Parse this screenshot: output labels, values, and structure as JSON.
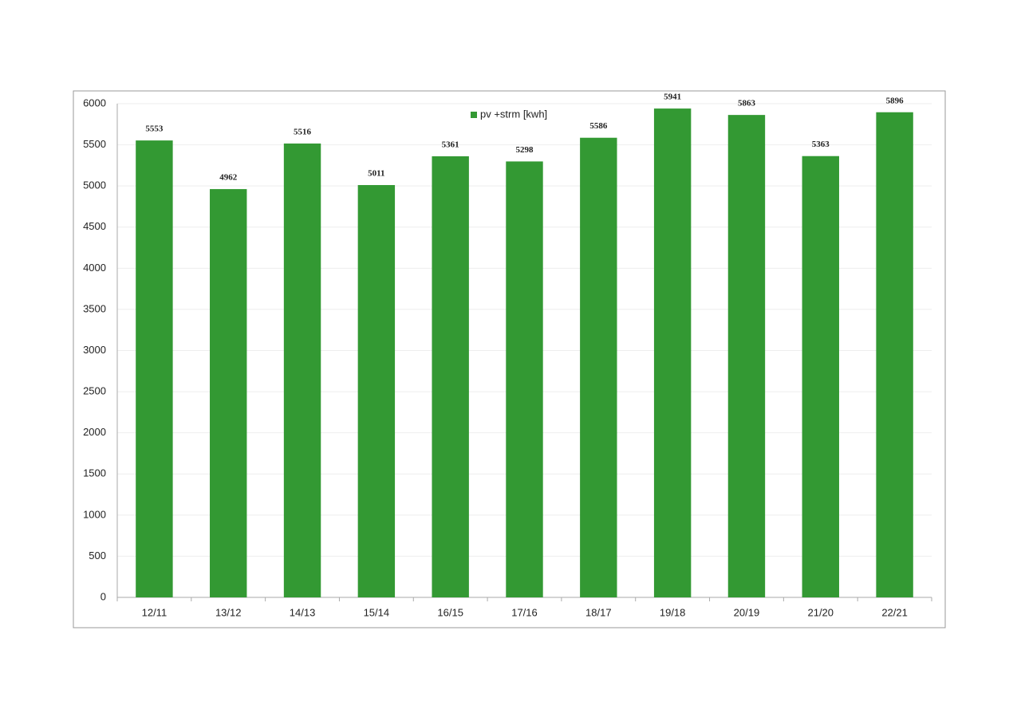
{
  "chart_data": {
    "type": "bar",
    "categories": [
      "12/11",
      "13/12",
      "14/13",
      "15/14",
      "16/15",
      "17/16",
      "18/17",
      "19/18",
      "20/19",
      "21/20",
      "22/21"
    ],
    "series": [
      {
        "name": "pv +strm [kwh]",
        "color": "#339933",
        "values": [
          5553,
          4962,
          5516,
          5011,
          5361,
          5298,
          5586,
          5941,
          5863,
          5363,
          5896
        ]
      }
    ],
    "ylim": [
      0,
      6000
    ],
    "yticks": [
      0,
      500,
      1000,
      1500,
      2000,
      2500,
      3000,
      3500,
      4000,
      4500,
      5000,
      5500,
      6000
    ],
    "grid": true,
    "data_labels": true,
    "legend": "top"
  }
}
